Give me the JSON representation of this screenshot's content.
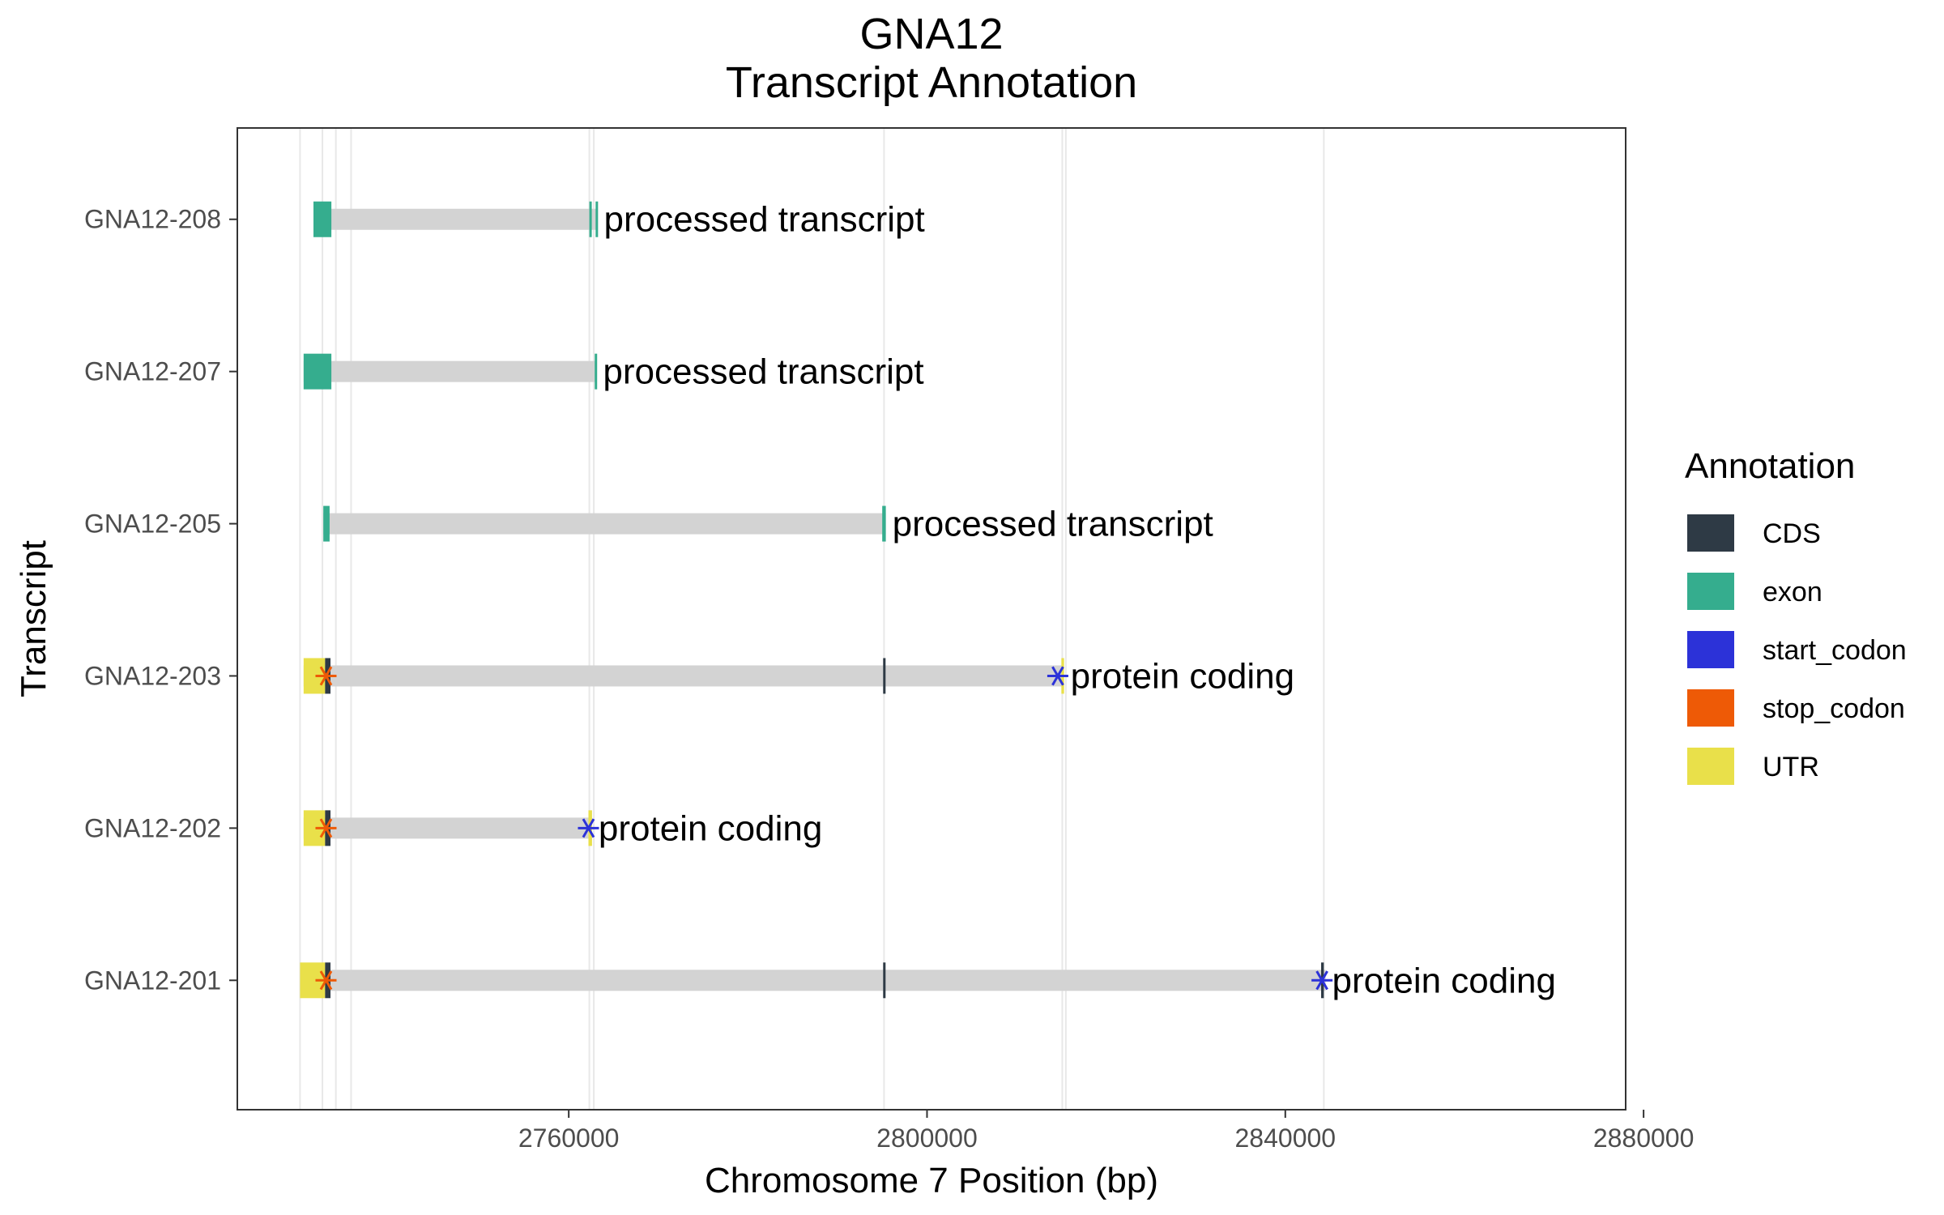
{
  "chart_data": {
    "type": "gene-transcript-annotation",
    "title": "GNA12",
    "subtitle": "Transcript Annotation",
    "xlabel": "Chromosome 7 Position (bp)",
    "ylabel": "Transcript",
    "xlim": [
      2723000,
      2878000
    ],
    "xticks": [
      2760000,
      2800000,
      2840000,
      2880000
    ],
    "xtick_labels": [
      "2760000",
      "2800000",
      "2840000",
      "2880000"
    ],
    "legend": {
      "title": "Annotation",
      "position": "right",
      "entries": [
        {
          "name": "CDS",
          "color": "#2e3a45"
        },
        {
          "name": "exon",
          "color": "#35ad8e"
        },
        {
          "name": "start_codon",
          "color": "#2c32d8"
        },
        {
          "name": "stop_codon",
          "color": "#ee5a06"
        },
        {
          "name": "UTR",
          "color": "#e9e04a"
        }
      ]
    },
    "colors": {
      "intron": "#d3d3d3",
      "guide_lines": "#e8e8e8",
      "CDS": "#2e3a45",
      "exon": "#35ad8e",
      "start_codon": "#2c32d8",
      "stop_codon": "#ee5a06",
      "UTR": "#e9e04a"
    },
    "guide_positions": [
      2730000,
      2732500,
      2734000,
      2735700,
      2762300,
      2762800,
      2795200,
      2815100,
      2815500,
      2844300
    ],
    "transcripts": [
      {
        "name": "GNA12-208",
        "label": "processed transcript",
        "start": 2731500,
        "end": 2763200,
        "features": [
          {
            "type": "exon",
            "start": 2731500,
            "end": 2733500
          },
          {
            "type": "exon",
            "start": 2762300,
            "end": 2762500
          },
          {
            "type": "exon",
            "start": 2763000,
            "end": 2763200
          }
        ]
      },
      {
        "name": "GNA12-207",
        "label": "processed transcript",
        "start": 2730400,
        "end": 2763100,
        "features": [
          {
            "type": "exon",
            "start": 2730400,
            "end": 2733500
          },
          {
            "type": "exon",
            "start": 2762900,
            "end": 2763100
          }
        ]
      },
      {
        "name": "GNA12-205",
        "label": "processed transcript",
        "start": 2732600,
        "end": 2795400,
        "features": [
          {
            "type": "exon",
            "start": 2732600,
            "end": 2733300
          },
          {
            "type": "exon",
            "start": 2795000,
            "end": 2795400
          }
        ]
      },
      {
        "name": "GNA12-203",
        "label": "protein coding",
        "start": 2730400,
        "end": 2815300,
        "features": [
          {
            "type": "UTR",
            "start": 2730400,
            "end": 2732800
          },
          {
            "type": "CDS",
            "start": 2732800,
            "end": 2733400
          },
          {
            "type": "CDS",
            "start": 2795100,
            "end": 2795300
          },
          {
            "type": "UTR",
            "start": 2815000,
            "end": 2815300
          }
        ],
        "stop_codon": 2732900,
        "start_codon": 2814600
      },
      {
        "name": "GNA12-202",
        "label": "protein coding",
        "start": 2730400,
        "end": 2762600,
        "features": [
          {
            "type": "UTR",
            "start": 2730400,
            "end": 2732800
          },
          {
            "type": "CDS",
            "start": 2732800,
            "end": 2733400
          },
          {
            "type": "UTR",
            "start": 2762200,
            "end": 2762600
          }
        ],
        "stop_codon": 2732900,
        "start_codon": 2762200
      },
      {
        "name": "GNA12-201",
        "label": "protein coding",
        "start": 2730000,
        "end": 2844500,
        "features": [
          {
            "type": "UTR",
            "start": 2730000,
            "end": 2732800
          },
          {
            "type": "CDS",
            "start": 2732800,
            "end": 2733400
          },
          {
            "type": "CDS",
            "start": 2795100,
            "end": 2795300
          },
          {
            "type": "CDS",
            "start": 2844000,
            "end": 2844300
          }
        ],
        "stop_codon": 2732900,
        "start_codon": 2844100
      }
    ]
  }
}
